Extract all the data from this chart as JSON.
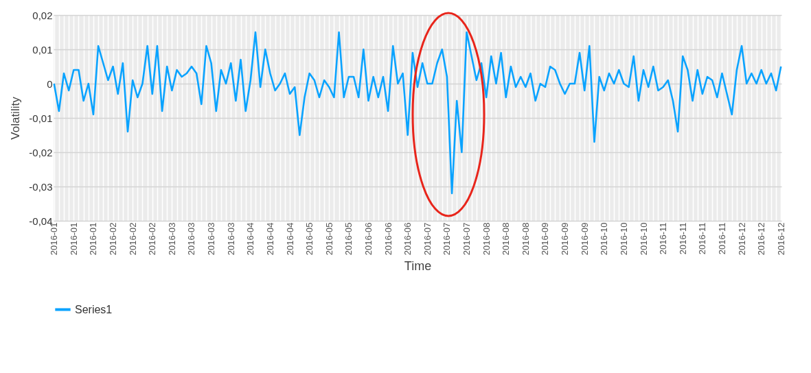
{
  "chart_data": {
    "type": "line",
    "xlabel": "Time",
    "ylabel": "Volatility",
    "categories": [
      "2016-01",
      null,
      null,
      null,
      "2016-01",
      null,
      null,
      null,
      "2016-01",
      null,
      null,
      null,
      "2016-02",
      null,
      null,
      null,
      "2016-02",
      null,
      null,
      null,
      "2016-02",
      null,
      null,
      null,
      "2016-03",
      null,
      null,
      null,
      "2016-03",
      null,
      null,
      null,
      "2016-03",
      null,
      null,
      null,
      "2016-03",
      null,
      null,
      null,
      "2016-04",
      null,
      null,
      null,
      "2016-04",
      null,
      null,
      null,
      "2016-04",
      null,
      null,
      null,
      "2016-05",
      null,
      null,
      null,
      "2016-05",
      null,
      null,
      null,
      "2016-05",
      null,
      null,
      null,
      "2016-06",
      null,
      null,
      null,
      "2016-06",
      null,
      null,
      null,
      "2016-06",
      null,
      null,
      null,
      "2016-07",
      null,
      null,
      null,
      "2016-07",
      null,
      null,
      null,
      "2016-07",
      null,
      null,
      null,
      "2016-08",
      null,
      null,
      null,
      "2016-08",
      null,
      null,
      null,
      "2016-08",
      null,
      null,
      null,
      "2016-09",
      null,
      null,
      null,
      "2016-09",
      null,
      null,
      null,
      "2016-09",
      null,
      null,
      null,
      "2016-10",
      null,
      null,
      null,
      "2016-10",
      null,
      null,
      null,
      "2016-10",
      null,
      null,
      null,
      "2016-11",
      null,
      null,
      null,
      "2016-11",
      null,
      null,
      null,
      "2016-11",
      null,
      null,
      null,
      "2016-11",
      null,
      null,
      null,
      "2016-12",
      null,
      null,
      null,
      "2016-12",
      null,
      null,
      null,
      "2016-12"
    ],
    "series": [
      {
        "name": "Series1",
        "color": "#0aa3ff",
        "values": [
          0,
          -0.008,
          0.003,
          -0.002,
          0.004,
          0.004,
          -0.005,
          0,
          -0.009,
          0.011,
          0.006,
          0.001,
          0.005,
          -0.003,
          0.006,
          -0.014,
          0.001,
          -0.004,
          0,
          0.011,
          -0.003,
          0.011,
          -0.008,
          0.005,
          -0.002,
          0.004,
          0.002,
          0.003,
          0.005,
          0.003,
          -0.006,
          0.011,
          0.006,
          -0.008,
          0.004,
          0,
          0.006,
          -0.005,
          0.007,
          -0.008,
          0.001,
          0.015,
          -0.001,
          0.01,
          0.003,
          -0.002,
          0,
          0.003,
          -0.003,
          -0.001,
          -0.015,
          -0.004,
          0.003,
          0.001,
          -0.004,
          0.001,
          -0.001,
          -0.004,
          0.015,
          -0.004,
          0.002,
          0.002,
          -0.004,
          0.01,
          -0.005,
          0.002,
          -0.004,
          0.002,
          -0.008,
          0.011,
          0,
          0.003,
          -0.015,
          0.009,
          -0.001,
          0.006,
          0,
          0,
          0.006,
          0.01,
          0.002,
          -0.032,
          -0.005,
          -0.02,
          0.015,
          0.008,
          0.001,
          0.006,
          -0.004,
          0.008,
          0,
          0.009,
          -0.004,
          0.005,
          -0.001,
          0.002,
          -0.001,
          0.003,
          -0.005,
          0,
          -0.001,
          0.005,
          0.004,
          0,
          -0.003,
          0,
          0,
          0.009,
          -0.002,
          0.011,
          -0.017,
          0.002,
          -0.002,
          0.003,
          0,
          0.004,
          0,
          -0.001,
          0.008,
          -0.005,
          0.004,
          -0.001,
          0.005,
          -0.002,
          -0.001,
          0.001,
          -0.005,
          -0.014,
          0.008,
          0.004,
          -0.005,
          0.004,
          -0.003,
          0.002,
          0.001,
          -0.004,
          0.003,
          -0.003,
          -0.009,
          0.004,
          0.011,
          0,
          0.003,
          0,
          0.004,
          0,
          0.003,
          -0.002,
          0.005
        ]
      }
    ],
    "ylim": [
      -0.04,
      0.02
    ],
    "yticks": [
      {
        "value": -0.04,
        "label": "-0,04"
      },
      {
        "value": -0.03,
        "label": "-0,03"
      },
      {
        "value": -0.02,
        "label": "-0,02"
      },
      {
        "value": -0.01,
        "label": "-0,01"
      },
      0,
      {
        "value": 0.01,
        "label": "0,01"
      },
      {
        "value": 0.02,
        "label": "0,02"
      }
    ],
    "grid": true,
    "legend": "bottom",
    "marker": "none",
    "line_style": "solid"
  }
}
